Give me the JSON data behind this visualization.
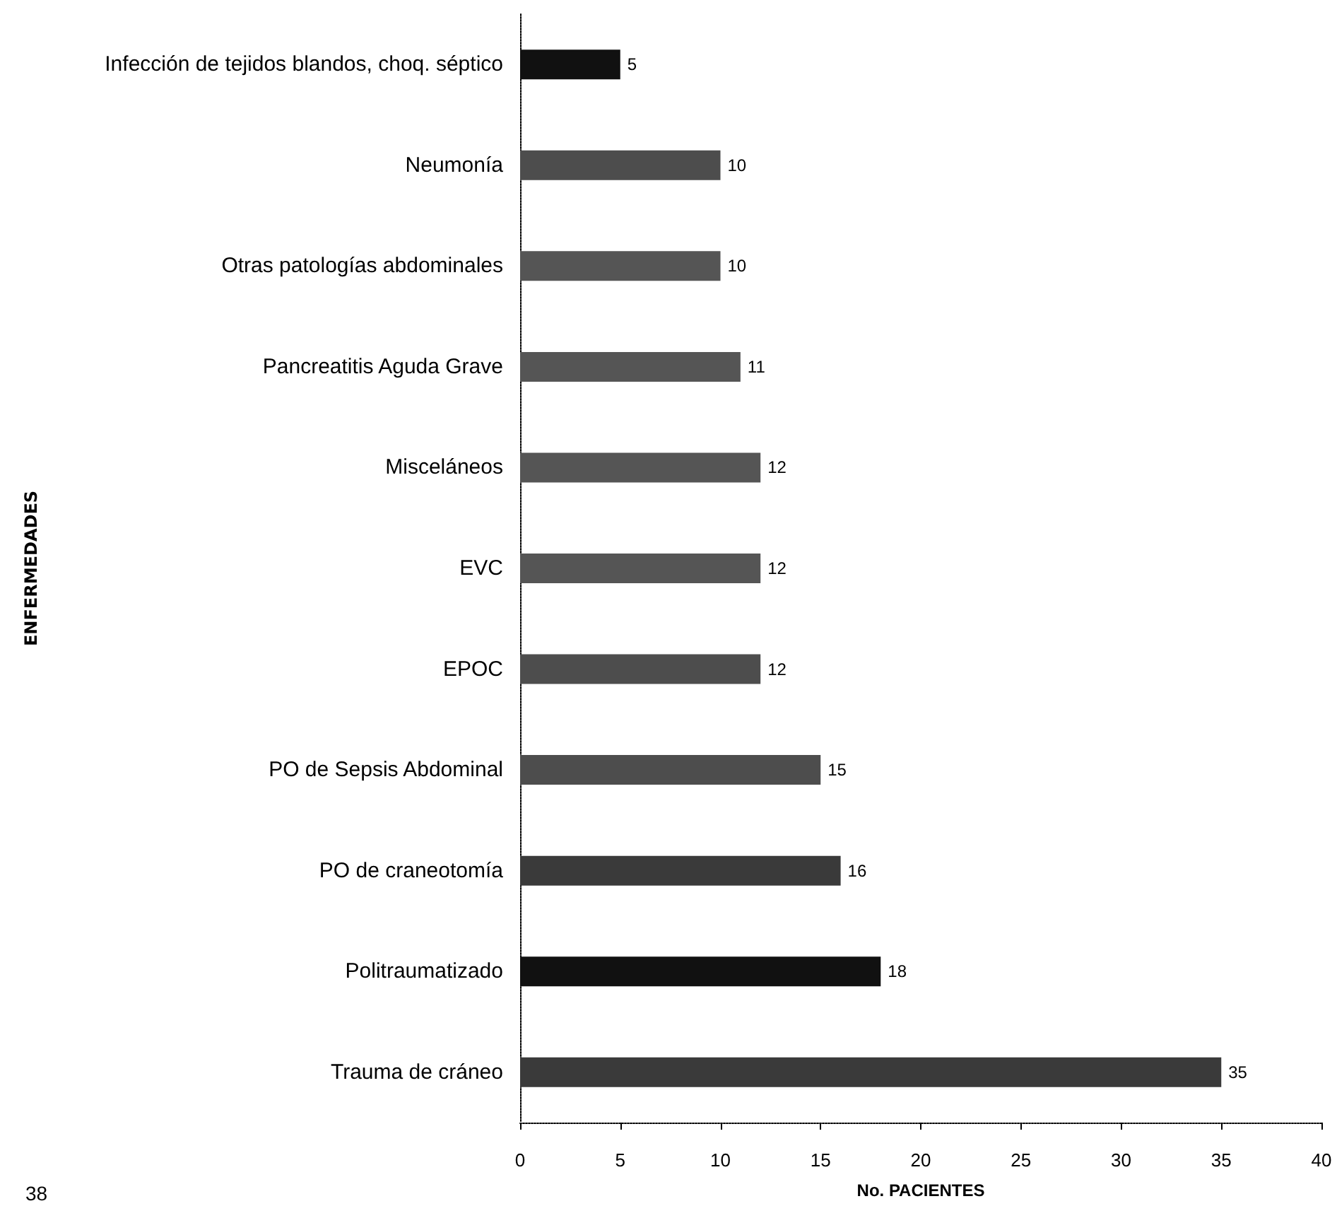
{
  "chart_data": {
    "type": "bar",
    "orientation": "horizontal",
    "xlabel": "No. PACIENTES",
    "ylabel": "ENFERMEDADES",
    "categories": [
      "Infección de tejidos blandos, choq. séptico",
      "Neumonía",
      "Otras patologías abdominales",
      "Pancreatitis Aguda Grave",
      "Misceláneos",
      "EVC",
      "EPOC",
      "PO de Sepsis Abdominal",
      "PO de craneotomía",
      "Politraumatizado",
      "Trauma de cráneo"
    ],
    "values": [
      5,
      10,
      10,
      11,
      12,
      12,
      12,
      15,
      16,
      18,
      35
    ],
    "colors": [
      "#111111",
      "#4d4d4d",
      "#555555",
      "#555555",
      "#555555",
      "#555555",
      "#4d4d4d",
      "#4d4d4d",
      "#3a3a3a",
      "#111111",
      "#3a3a3a"
    ],
    "xlim": [
      0,
      40
    ],
    "xticks": [
      0,
      5,
      10,
      15,
      20,
      25,
      30,
      35,
      40
    ],
    "data_labels": true,
    "grid": false,
    "annotations": [
      "38"
    ]
  }
}
